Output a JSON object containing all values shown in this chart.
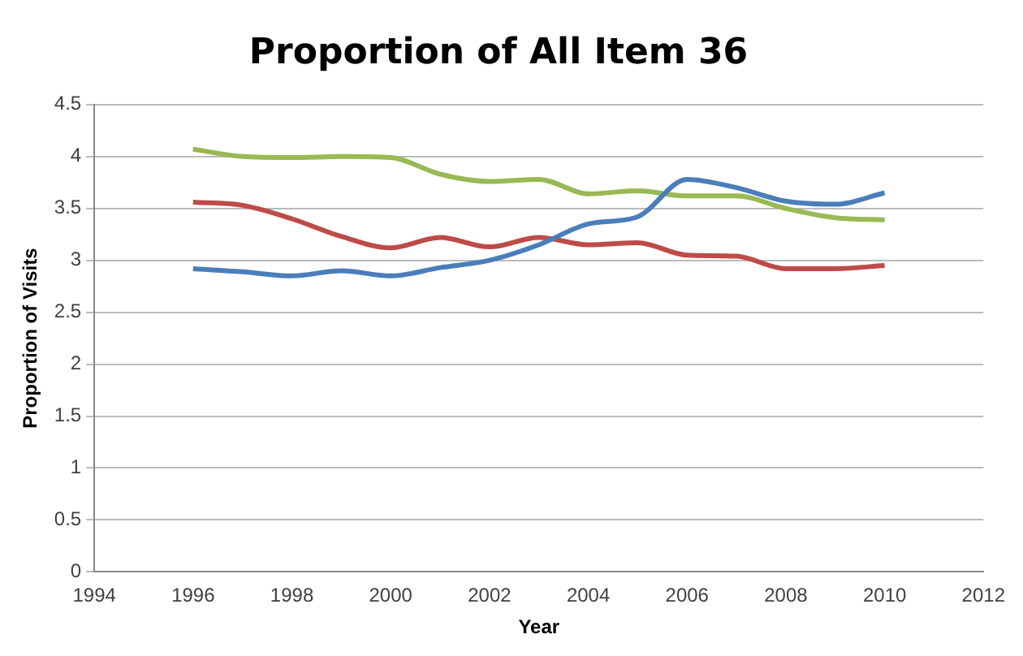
{
  "chart_data": {
    "type": "line",
    "title": "Proportion of All Item 36",
    "xlabel": "Year",
    "ylabel": "Proportion of Visits",
    "x": [
      1996,
      1997,
      1998,
      1999,
      2000,
      2001,
      2002,
      2003,
      2004,
      2005,
      2006,
      2007,
      2008,
      2009,
      2010
    ],
    "series": [
      {
        "color": "#4a7ebb",
        "values": [
          2.92,
          2.89,
          2.85,
          2.9,
          2.85,
          2.93,
          3.0,
          3.15,
          3.35,
          3.42,
          3.78,
          3.7,
          3.57,
          3.54,
          3.65
        ]
      },
      {
        "color": "#be4b48",
        "values": [
          3.56,
          3.53,
          3.4,
          3.23,
          3.12,
          3.22,
          3.13,
          3.22,
          3.15,
          3.17,
          3.05,
          3.04,
          2.92,
          2.92,
          2.95
        ]
      },
      {
        "color": "#98b954",
        "values": [
          4.07,
          4.0,
          3.99,
          4.0,
          3.99,
          3.83,
          3.76,
          3.78,
          3.64,
          3.67,
          3.62,
          3.62,
          3.5,
          3.41,
          3.39
        ]
      }
    ],
    "xlim": [
      1994,
      2012
    ],
    "xticks": [
      1994,
      1996,
      1998,
      2000,
      2002,
      2004,
      2006,
      2008,
      2010,
      2012
    ],
    "ylim": [
      0,
      4.5
    ],
    "yticks": [
      0,
      0.5,
      1,
      1.5,
      2,
      2.5,
      3,
      3.5,
      4,
      4.5
    ],
    "grid": "y",
    "legend": false,
    "marker": "none",
    "line_style": "solid"
  }
}
